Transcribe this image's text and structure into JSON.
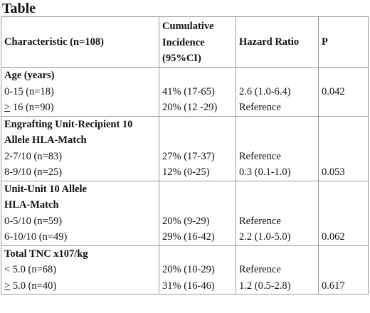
{
  "title": "Table",
  "headers": {
    "characteristic": "Characteristic (n=108)",
    "cumulative_incidence": [
      "Cumulative",
      "Incidence",
      "(95%CI)"
    ],
    "hazard_ratio": "Hazard Ratio",
    "p": "P"
  },
  "sections": [
    {
      "heading": [
        "Age  (years)"
      ],
      "rows": [
        {
          "label": "0-15 (n=18)",
          "ci": "41% (17-65)",
          "hr": "2.6 (1.0-6.4)",
          "p": "0.042"
        },
        {
          "label_symbol": ">",
          "label": " 16 (n=90)",
          "ci": "20% (12 -29)",
          "hr": "Reference",
          "p": ""
        }
      ]
    },
    {
      "heading": [
        "Engrafting Unit-Recipient 10",
        "Allele HLA-Match"
      ],
      "rows": [
        {
          "label": "2-7/10 (n=83)",
          "ci": "27% (17-37)",
          "hr": "Reference",
          "p": ""
        },
        {
          "label": "8-9/10 (n=25)",
          "ci": "12% (0-25)",
          "hr": "0.3 (0.1-1.0)",
          "p": "0.053"
        }
      ]
    },
    {
      "heading": [
        "Unit-Unit 10 Allele",
        "HLA-Match"
      ],
      "rows": [
        {
          "label": "0-5/10 (n=59)",
          "ci": "20% (9-29)",
          "hr": "Reference",
          "p": ""
        },
        {
          "label": "6-10/10 (n=49)",
          "ci": "29% (16-42)",
          "hr": "2.2 (1.0-5.0)",
          "p": "0.062"
        }
      ]
    },
    {
      "heading": [
        "Total TNC x107/kg"
      ],
      "rows": [
        {
          "label": "< 5.0 (n=68)",
          "ci": "20% (10-29)",
          "hr": "Reference",
          "p": ""
        },
        {
          "label_symbol": ">",
          "label": " 5.0 (n=40)",
          "ci": "31% (16-46)",
          "hr": "1.2 (0.5-2.8)",
          "p": "0.617"
        }
      ]
    }
  ]
}
